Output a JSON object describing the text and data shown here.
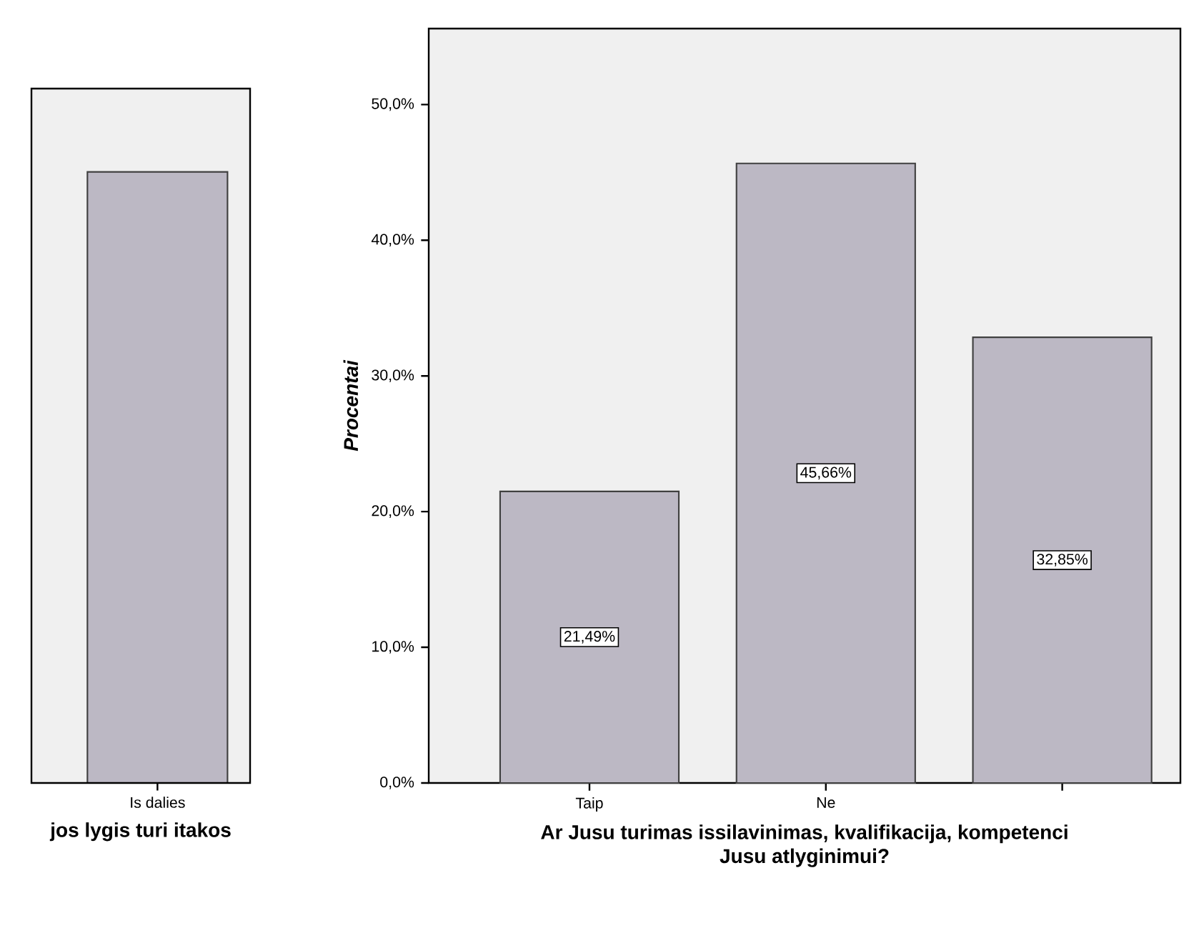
{
  "chart_data": [
    {
      "type": "other",
      "categories": [
        "Is dalies"
      ],
      "color": "#bcb8c4",
      "xlabel": "jos lygis turi itakos"
    },
    {
      "type": "bar",
      "categories": [
        "Taip",
        "Ne",
        null
      ],
      "values": [
        21.49,
        45.66,
        32.85
      ],
      "value_labels": [
        "21,49%",
        "45,66%",
        "32,85%"
      ],
      "color": "#bcb8c4",
      "xlabel": "Ar Jusu turimas issilavinimas, kvalifikacija, kompetenci Jusu atlyginimui?",
      "ylabel": "Procentai",
      "ylim": [
        0,
        55.6
      ],
      "yticks": [
        {
          "value": 0,
          "label": "0,0%"
        },
        {
          "value": 10,
          "label": "10,0%"
        },
        {
          "value": 20,
          "label": "20,0%"
        },
        {
          "value": 30,
          "label": "30,0%"
        },
        {
          "value": 40,
          "label": "40,0%"
        },
        {
          "value": 50,
          "label": "50,0%"
        }
      ]
    }
  ]
}
